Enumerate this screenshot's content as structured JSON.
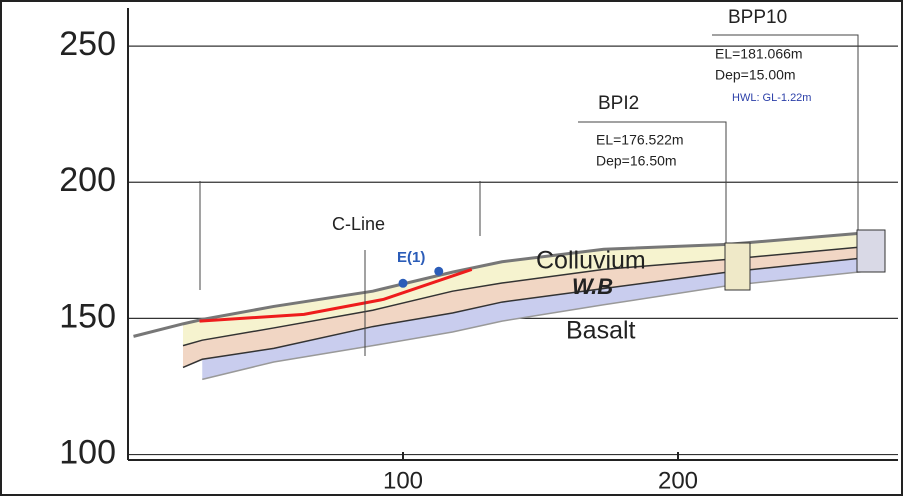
{
  "chart_data": {
    "type": "cross-section",
    "x": [
      2,
      20,
      27,
      53,
      89,
      118,
      136,
      173,
      218,
      275
    ],
    "series": [
      {
        "color": "#777777",
        "fill": "#f6f3cf",
        "values": [
          143.4,
          148,
          149.6,
          154.4,
          160,
          167,
          170.8,
          175.4,
          177.2,
          182
        ]
      },
      {
        "color": "#333333",
        "fill": "#f1d6c4",
        "values": [
          null,
          140,
          142,
          146.5,
          153,
          160,
          163,
          168,
          171.7,
          177
        ]
      },
      {
        "color": "#333333",
        "fill": "#c9cdee",
        "values": [
          null,
          132,
          135,
          139,
          147,
          152,
          156,
          161,
          167,
          173
        ]
      },
      {
        "color": "#999999",
        "values": [
          null,
          null,
          127.6,
          134,
          140,
          145,
          149,
          155,
          162,
          168
        ]
      }
    ],
    "failure_line": {
      "color": "#ee1c1c",
      "x": [
        26,
        64,
        93,
        125
      ],
      "values": [
        149,
        151.5,
        157,
        168
      ]
    },
    "points": {
      "color": "#2b5cb8",
      "x": [
        100,
        113
      ],
      "values": [
        162.9,
        167.3
      ]
    },
    "xlim": [
      0,
      280
    ],
    "ylim": [
      98,
      264
    ],
    "xticks": [
      100,
      200
    ],
    "yticks": [
      100,
      150,
      200,
      250
    ],
    "grid": true,
    "annotations": {
      "bpp10": "BPP10",
      "bpp10_el": "EL=181.066m",
      "bpp10_dep": "Dep=15.00m",
      "bpp10_hwl": "HWL: GL-1.22m",
      "bpi2": "BPI2",
      "bpi2_el": "EL=176.522m",
      "bpi2_dep": "Dep=16.50m",
      "cline": "C-Line",
      "e1": "E(1)",
      "colluvium": "Colluvium",
      "wb": "W.B",
      "basalt": "Basalt"
    }
  }
}
